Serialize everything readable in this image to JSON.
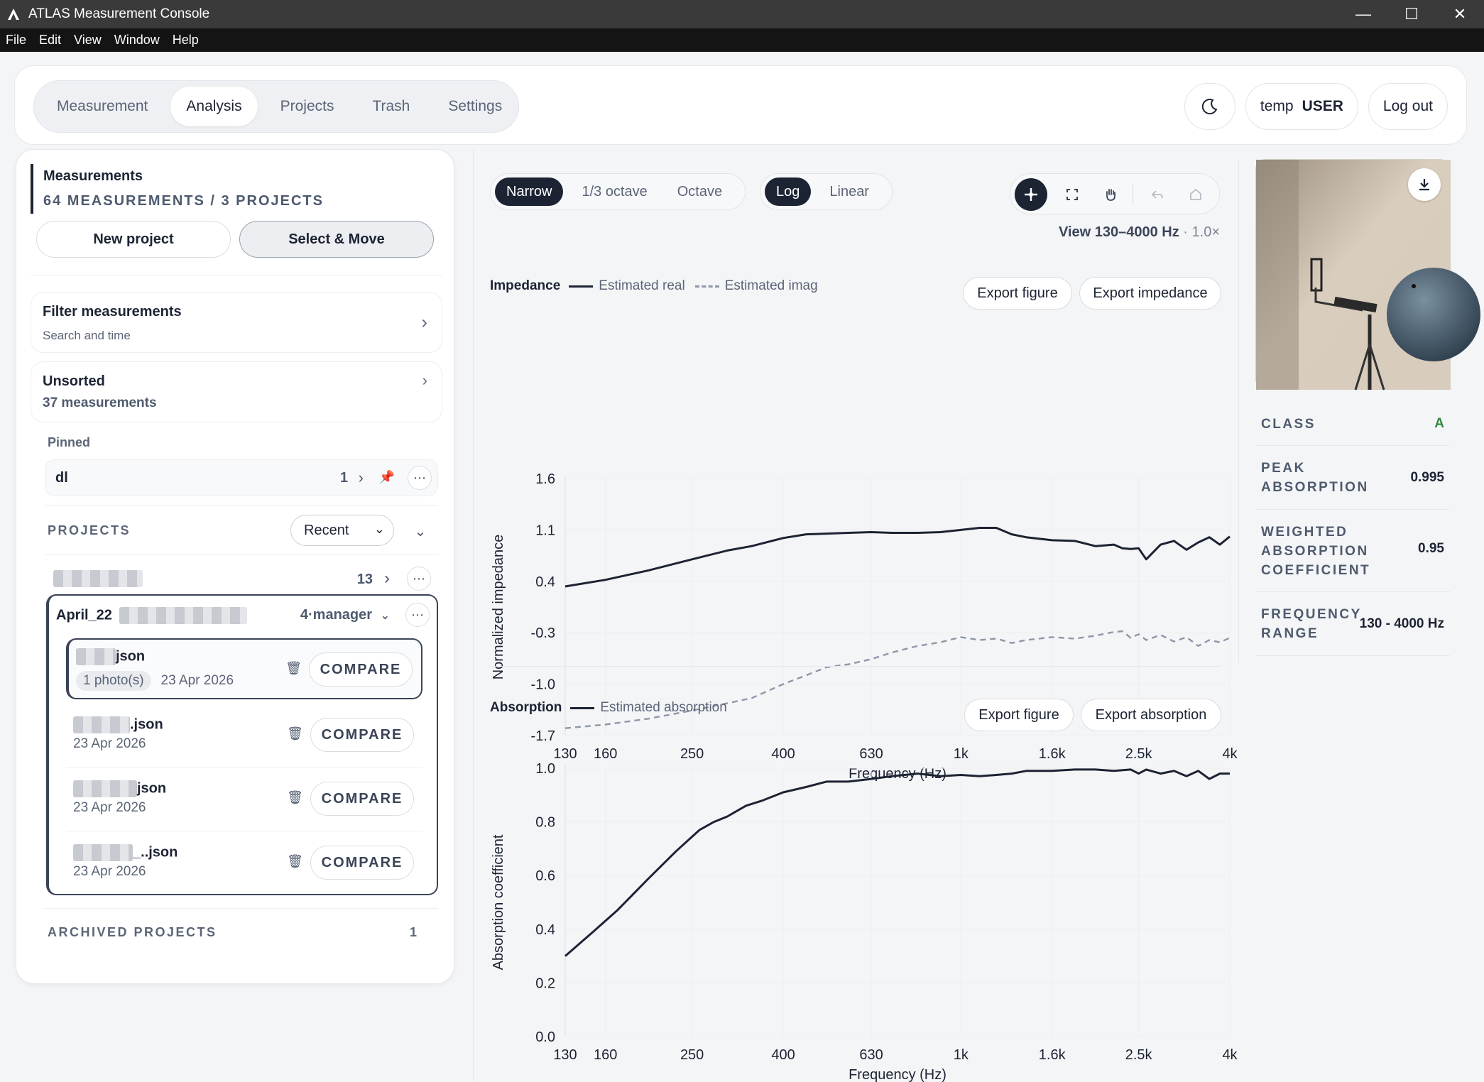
{
  "window": {
    "title": "ATLAS Measurement Console",
    "menu": [
      "File",
      "Edit",
      "View",
      "Window",
      "Help"
    ],
    "controls": {
      "minimize": "—",
      "maximize": "☐",
      "close": "✕"
    }
  },
  "nav": {
    "tabs": [
      "Measurement",
      "Analysis",
      "Projects",
      "Trash",
      "Settings"
    ],
    "active": "Analysis",
    "user_name": "temp",
    "user_role": "USER",
    "logout": "Log out",
    "theme_icon": "moon-icon"
  },
  "sidebar": {
    "title": "Measurements",
    "summary": "64 MEASUREMENTS / 3 PROJECTS",
    "new_project": "New project",
    "select_move": "Select & Move",
    "filter": {
      "title": "Filter measurements",
      "subtitle": "Search and time"
    },
    "unsorted": {
      "title": "Unsorted",
      "count": "37 measurements"
    },
    "pinned_label": "Pinned",
    "pinned": {
      "name": "dl",
      "count": "1"
    },
    "projects_label": "PROJECTS",
    "sort": "Recent",
    "project_1": {
      "count": "13"
    },
    "project_2": {
      "name": "April_22",
      "owner": "4·manager",
      "items": [
        {
          "file": "json",
          "photos": "1 photo(s)",
          "date": "23 Apr 2026",
          "action": "COMPARE"
        },
        {
          "file": ".json",
          "date": "23 Apr 2026",
          "action": "COMPARE"
        },
        {
          "file": "json",
          "date": "23 Apr 2026",
          "action": "COMPARE"
        },
        {
          "file": "_..json",
          "date": "23 Apr 2026",
          "action": "COMPARE"
        }
      ]
    },
    "archived_label": "ARCHIVED PROJECTS",
    "archived_count": "1"
  },
  "controls": {
    "bands": [
      "Narrow",
      "1/3 octave",
      "Octave"
    ],
    "active_band": "Narrow",
    "scales": [
      "Log",
      "Linear"
    ],
    "active_scale": "Log",
    "tools": [
      "crosshair-icon",
      "fit-icon",
      "pan-icon",
      "undo-icon",
      "home-icon"
    ],
    "view_range": "View 130–4000 Hz",
    "zoom": "1.0×"
  },
  "chart_data": [
    {
      "type": "line",
      "title": "Impedance",
      "xlabel": "Frequency (Hz)",
      "ylabel": "Normalized impedance",
      "xscale": "log",
      "xlim": [
        130,
        4000
      ],
      "ylim": [
        -1.7,
        1.6
      ],
      "x_ticks": [
        "130",
        "160",
        "250",
        "400",
        "630",
        "1k",
        "1.6k",
        "2.5k",
        "4k"
      ],
      "y_ticks": [
        "1.6",
        "1.1",
        "0.4",
        "-0.3",
        "-1.0",
        "-1.7"
      ],
      "export_figure": "Export figure",
      "export_data": "Export impedance",
      "series": [
        {
          "name": "Estimated real",
          "style": "solid",
          "color": "#1c2333",
          "x": [
            130,
            160,
            200,
            250,
            300,
            340,
            400,
            450,
            500,
            560,
            630,
            700,
            800,
            900,
            1000,
            1100,
            1200,
            1300,
            1400,
            1600,
            1800,
            2000,
            2200,
            2300,
            2400,
            2500,
            2600,
            2800,
            3000,
            3200,
            3400,
            3600,
            3800,
            4000
          ],
          "y": [
            0.33,
            0.42,
            0.55,
            0.7,
            0.82,
            0.88,
            0.99,
            1.04,
            1.05,
            1.06,
            1.07,
            1.06,
            1.06,
            1.07,
            1.1,
            1.12,
            1.12,
            1.04,
            1.0,
            0.96,
            0.95,
            0.88,
            0.9,
            0.85,
            0.84,
            0.85,
            0.7,
            0.9,
            0.95,
            0.83,
            0.93,
            1.0,
            0.9,
            1.01
          ]
        },
        {
          "name": "Estimated imag",
          "style": "dashed",
          "color": "#8d97a8",
          "x": [
            130,
            160,
            200,
            250,
            300,
            340,
            400,
            450,
            500,
            560,
            630,
            700,
            800,
            900,
            1000,
            1100,
            1200,
            1300,
            1400,
            1600,
            1800,
            2000,
            2200,
            2300,
            2400,
            2500,
            2600,
            2800,
            3000,
            3200,
            3400,
            3600,
            3800,
            4000
          ],
          "y": [
            -1.6,
            -1.55,
            -1.47,
            -1.36,
            -1.26,
            -1.19,
            -1.0,
            -0.88,
            -0.77,
            -0.73,
            -0.66,
            -0.57,
            -0.48,
            -0.43,
            -0.36,
            -0.4,
            -0.38,
            -0.44,
            -0.4,
            -0.36,
            -0.38,
            -0.34,
            -0.29,
            -0.28,
            -0.37,
            -0.32,
            -0.4,
            -0.33,
            -0.42,
            -0.36,
            -0.48,
            -0.4,
            -0.43,
            -0.37
          ]
        }
      ]
    },
    {
      "type": "line",
      "title": "Absorption",
      "xlabel": "Frequency (Hz)",
      "ylabel": "Absorption coefficient",
      "xscale": "log",
      "xlim": [
        130,
        4000
      ],
      "ylim": [
        0.0,
        1.0
      ],
      "x_ticks": [
        "130",
        "160",
        "250",
        "400",
        "630",
        "1k",
        "1.6k",
        "2.5k",
        "4k"
      ],
      "y_ticks": [
        "1.0",
        "0.8",
        "0.6",
        "0.4",
        "0.2",
        "0.0"
      ],
      "export_figure": "Export figure",
      "export_data": "Export absorption",
      "series": [
        {
          "name": "Estimated absorption",
          "style": "solid",
          "color": "#1c2333",
          "x": [
            130,
            150,
            170,
            200,
            230,
            260,
            280,
            300,
            330,
            360,
            400,
            450,
            500,
            560,
            630,
            700,
            800,
            900,
            1000,
            1100,
            1200,
            1300,
            1400,
            1600,
            1800,
            2000,
            2200,
            2400,
            2500,
            2600,
            2800,
            3000,
            3200,
            3400,
            3600,
            3800,
            4000
          ],
          "y": [
            0.3,
            0.39,
            0.47,
            0.59,
            0.69,
            0.77,
            0.8,
            0.82,
            0.86,
            0.88,
            0.91,
            0.93,
            0.95,
            0.95,
            0.96,
            0.97,
            0.98,
            0.97,
            0.975,
            0.97,
            0.975,
            0.98,
            0.99,
            0.99,
            0.995,
            0.995,
            0.99,
            0.995,
            0.98,
            0.995,
            0.98,
            0.99,
            0.97,
            0.99,
            0.96,
            0.98,
            0.98
          ]
        }
      ]
    }
  ],
  "panel": {
    "photo_alt": "sample photo",
    "download_icon": "download-icon",
    "stats": [
      {
        "key": "CLASS",
        "value": "A",
        "color": "#2e8b3e"
      },
      {
        "key": "PEAK ABSORPTION",
        "value": "0.995"
      },
      {
        "key": "WEIGHTED ABSORPTION COEFFICIENT",
        "value": "0.95"
      },
      {
        "key": "FREQUENCY RANGE",
        "value": "130 - 4000 Hz"
      }
    ]
  }
}
